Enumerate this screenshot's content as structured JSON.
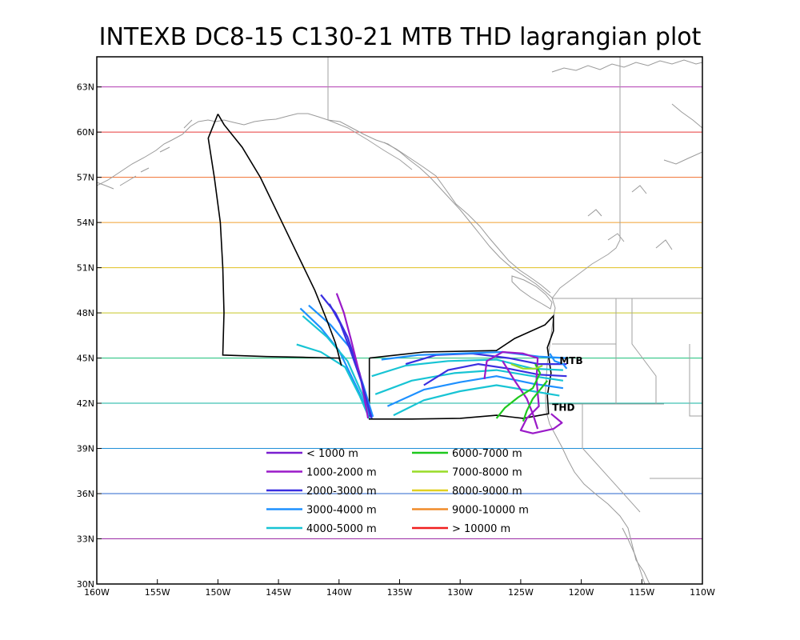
{
  "title": "INTEXB DC8-15 C130-21 MTB THD lagrangian plot",
  "axes": {
    "lon_min": -160,
    "lon_max": -110,
    "lat_min": 30,
    "lat_max": 65,
    "x_ticks": [
      {
        "value": -160,
        "label": "160W"
      },
      {
        "value": -155,
        "label": "155W"
      },
      {
        "value": -150,
        "label": "150W"
      },
      {
        "value": -145,
        "label": "145W"
      },
      {
        "value": -140,
        "label": "140W"
      },
      {
        "value": -135,
        "label": "135W"
      },
      {
        "value": -130,
        "label": "130W"
      },
      {
        "value": -125,
        "label": "125W"
      },
      {
        "value": -120,
        "label": "120W"
      },
      {
        "value": -115,
        "label": "115W"
      },
      {
        "value": -110,
        "label": "110W"
      }
    ],
    "y_ticks": [
      {
        "value": 30,
        "label": "30N"
      },
      {
        "value": 33,
        "label": "33N"
      },
      {
        "value": 36,
        "label": "36N"
      },
      {
        "value": 39,
        "label": "39N"
      },
      {
        "value": 42,
        "label": "42N"
      },
      {
        "value": 45,
        "label": "45N"
      },
      {
        "value": 48,
        "label": "48N"
      },
      {
        "value": 51,
        "label": "51N"
      },
      {
        "value": 54,
        "label": "54N"
      },
      {
        "value": 57,
        "label": "57N"
      },
      {
        "value": 60,
        "label": "60N"
      },
      {
        "value": 63,
        "label": "63N"
      }
    ]
  },
  "latitude_lines": [
    {
      "lat": 33,
      "color": "#9b2ca6"
    },
    {
      "lat": 36,
      "color": "#2a66cc"
    },
    {
      "lat": 39,
      "color": "#1f8fd8"
    },
    {
      "lat": 42,
      "color": "#12b3a0"
    },
    {
      "lat": 45,
      "color": "#18bf78"
    },
    {
      "lat": 48,
      "color": "#c8c826"
    },
    {
      "lat": 51,
      "color": "#e0c020"
    },
    {
      "lat": 54,
      "color": "#f0a030"
    },
    {
      "lat": 57,
      "color": "#f07030"
    },
    {
      "lat": 60,
      "color": "#e83a3a"
    },
    {
      "lat": 63,
      "color": "#b03ab0"
    }
  ],
  "legend": [
    {
      "label": "< 1000 m",
      "color": "#7a1fd0"
    },
    {
      "label": "1000-2000 m",
      "color": "#9a1ac8"
    },
    {
      "label": "2000-3000 m",
      "color": "#3a2fe0"
    },
    {
      "label": "3000-4000 m",
      "color": "#1e90ff"
    },
    {
      "label": "4000-5000 m",
      "color": "#18c4d4"
    },
    {
      "label": "6000-7000 m",
      "color": "#1ec81e"
    },
    {
      "label": "7000-8000 m",
      "color": "#98dc28"
    },
    {
      "label": "8000-9000 m",
      "color": "#e0d020"
    },
    {
      "label": "9000-10000 m",
      "color": "#f08c2a"
    },
    {
      "label": "> 10000 m",
      "color": "#f02020"
    }
  ],
  "sites": [
    {
      "label": "MTB",
      "lon": -121.8,
      "lat": 44.6
    },
    {
      "label": "THD",
      "lon": -122.4,
      "lat": 41.5
    }
  ],
  "flight_track": [
    [
      -150.0,
      61.2
    ],
    [
      -150.8,
      59.6
    ],
    [
      -150.3,
      57.0
    ],
    [
      -149.8,
      54.0
    ],
    [
      -149.6,
      51.0
    ],
    [
      -149.5,
      48.0
    ],
    [
      -149.6,
      45.2
    ],
    [
      -146.0,
      45.1
    ],
    [
      -143.0,
      45.05
    ],
    [
      -140.0,
      45.0
    ],
    [
      -139.8,
      44.5
    ],
    [
      -140.3,
      46.0
    ],
    [
      -141.0,
      47.5
    ],
    [
      -142.0,
      49.5
    ],
    [
      -143.5,
      52.0
    ],
    [
      -145.0,
      54.5
    ],
    [
      -146.5,
      57.0
    ],
    [
      -148.0,
      59.0
    ],
    [
      -149.5,
      60.5
    ],
    [
      -150.0,
      61.2
    ]
  ],
  "c130_track": [
    [
      -137.5,
      45.0
    ],
    [
      -133.0,
      45.4
    ],
    [
      -127.0,
      45.5
    ],
    [
      -125.5,
      46.3
    ],
    [
      -123.0,
      47.2
    ],
    [
      -122.3,
      47.8
    ],
    [
      -122.3,
      46.8
    ],
    [
      -122.8,
      45.7
    ],
    [
      -122.5,
      44.0
    ],
    [
      -122.8,
      42.5
    ],
    [
      -122.7,
      41.3
    ],
    [
      -124.8,
      41.0
    ],
    [
      -127.0,
      41.2
    ],
    [
      -130.0,
      41.0
    ],
    [
      -134.0,
      40.95
    ],
    [
      -137.5,
      40.95
    ],
    [
      -137.5,
      45.0
    ]
  ],
  "trajectories": [
    {
      "color": "#1e90ff",
      "points": [
        [
          -143.2,
          48.3
        ],
        [
          -141.5,
          47.0
        ],
        [
          -140.0,
          45.5
        ],
        [
          -138.5,
          43.0
        ],
        [
          -137.5,
          41.2
        ]
      ]
    },
    {
      "color": "#18c4d4",
      "points": [
        [
          -143.0,
          47.8
        ],
        [
          -141.0,
          46.4
        ],
        [
          -139.3,
          44.8
        ],
        [
          -138.2,
          42.8
        ],
        [
          -137.3,
          41.0
        ]
      ]
    },
    {
      "color": "#1e90ff",
      "points": [
        [
          -142.5,
          48.5
        ],
        [
          -140.7,
          47.2
        ],
        [
          -139.0,
          45.6
        ],
        [
          -138.0,
          43.2
        ],
        [
          -137.2,
          41.1
        ]
      ]
    },
    {
      "color": "#18c4d4",
      "points": [
        [
          -143.5,
          45.9
        ],
        [
          -141.5,
          45.4
        ],
        [
          -139.5,
          44.4
        ],
        [
          -138.3,
          42.5
        ],
        [
          -137.5,
          41.0
        ]
      ]
    },
    {
      "color": "#3a2fe0",
      "points": [
        [
          -141.5,
          49.2
        ],
        [
          -140.3,
          48.0
        ],
        [
          -139.3,
          46.4
        ],
        [
          -138.3,
          44.0
        ],
        [
          -137.4,
          41.1
        ]
      ]
    },
    {
      "color": "#9a1ac8",
      "points": [
        [
          -140.2,
          49.3
        ],
        [
          -139.6,
          48.0
        ],
        [
          -139.0,
          46.2
        ],
        [
          -138.2,
          43.6
        ],
        [
          -137.6,
          41.0
        ]
      ]
    },
    {
      "color": "#3a2fe0",
      "points": [
        [
          -140.8,
          48.6
        ],
        [
          -139.9,
          47.3
        ],
        [
          -139.1,
          45.6
        ],
        [
          -138.1,
          43.3
        ],
        [
          -137.3,
          41.0
        ]
      ]
    },
    {
      "color": "#18c4d4",
      "points": [
        [
          -137.3,
          43.8
        ],
        [
          -134.5,
          44.5
        ],
        [
          -131.0,
          44.8
        ],
        [
          -127.0,
          44.9
        ],
        [
          -124.0,
          44.3
        ],
        [
          -121.5,
          44.2
        ]
      ]
    },
    {
      "color": "#18c4d4",
      "points": [
        [
          -137.0,
          42.6
        ],
        [
          -134.0,
          43.5
        ],
        [
          -130.5,
          44.0
        ],
        [
          -127.0,
          44.2
        ],
        [
          -124.0,
          43.8
        ],
        [
          -121.5,
          43.5
        ]
      ]
    },
    {
      "color": "#1e90ff",
      "points": [
        [
          -136.0,
          41.8
        ],
        [
          -133.0,
          42.9
        ],
        [
          -130.0,
          43.4
        ],
        [
          -127.0,
          43.8
        ],
        [
          -124.0,
          43.3
        ],
        [
          -121.5,
          43.0
        ]
      ]
    },
    {
      "color": "#18c4d4",
      "points": [
        [
          -135.5,
          41.2
        ],
        [
          -133.0,
          42.2
        ],
        [
          -130.0,
          42.8
        ],
        [
          -127.0,
          43.2
        ],
        [
          -124.0,
          42.8
        ],
        [
          -121.8,
          42.5
        ]
      ]
    },
    {
      "color": "#3a2fe0",
      "points": [
        [
          -134.5,
          44.6
        ],
        [
          -132.0,
          45.2
        ],
        [
          -129.0,
          45.3
        ],
        [
          -126.0,
          45.0
        ],
        [
          -123.5,
          44.6
        ],
        [
          -121.2,
          44.6
        ]
      ]
    },
    {
      "color": "#3a2fe0",
      "points": [
        [
          -133.0,
          43.2
        ],
        [
          -131.0,
          44.2
        ],
        [
          -128.5,
          44.6
        ],
        [
          -126.0,
          44.3
        ],
        [
          -123.5,
          43.9
        ],
        [
          -121.2,
          43.8
        ]
      ]
    },
    {
      "color": "#1e90ff",
      "points": [
        [
          -136.5,
          44.9
        ],
        [
          -133.5,
          45.2
        ],
        [
          -130.0,
          45.3
        ],
        [
          -126.5,
          45.4
        ],
        [
          -123.5,
          45.1
        ],
        [
          -121.2,
          45.0
        ]
      ]
    },
    {
      "color": "#9a1ac8",
      "points": [
        [
          -128.0,
          43.6
        ],
        [
          -127.8,
          44.8
        ],
        [
          -126.5,
          45.4
        ],
        [
          -124.8,
          45.3
        ],
        [
          -123.6,
          45.0
        ],
        [
          -123.7,
          43.6
        ],
        [
          -123.5,
          41.8
        ],
        [
          -124.5,
          41.0
        ],
        [
          -125.0,
          40.2
        ],
        [
          -124.0,
          40.0
        ],
        [
          -122.3,
          40.3
        ],
        [
          -121.6,
          40.7
        ],
        [
          -122.5,
          41.3
        ]
      ]
    },
    {
      "color": "#9a1ac8",
      "points": [
        [
          -126.5,
          44.8
        ],
        [
          -125.5,
          43.5
        ],
        [
          -124.5,
          42.3
        ],
        [
          -124.0,
          41.3
        ],
        [
          -123.6,
          40.3
        ]
      ]
    },
    {
      "color": "#1ec81e",
      "points": [
        [
          -127.0,
          41.0
        ],
        [
          -126.3,
          41.7
        ],
        [
          -125.2,
          42.4
        ],
        [
          -124.0,
          43.0
        ],
        [
          -123.4,
          44.0
        ],
        [
          -123.8,
          44.6
        ]
      ]
    },
    {
      "color": "#98dc28",
      "points": [
        [
          -125.8,
          44.6
        ],
        [
          -124.8,
          44.3
        ],
        [
          -123.8,
          44.3
        ],
        [
          -123.2,
          44.5
        ]
      ]
    },
    {
      "color": "#1ec81e",
      "points": [
        [
          -124.8,
          40.8
        ],
        [
          -124.5,
          41.5
        ],
        [
          -124.0,
          42.3
        ],
        [
          -123.3,
          43.0
        ],
        [
          -122.8,
          43.5
        ]
      ]
    },
    {
      "color": "#1e90ff",
      "points": [
        [
          -122.6,
          45.3
        ],
        [
          -122.2,
          44.8
        ],
        [
          -121.5,
          44.6
        ],
        [
          -121.2,
          44.3
        ]
      ]
    }
  ]
}
